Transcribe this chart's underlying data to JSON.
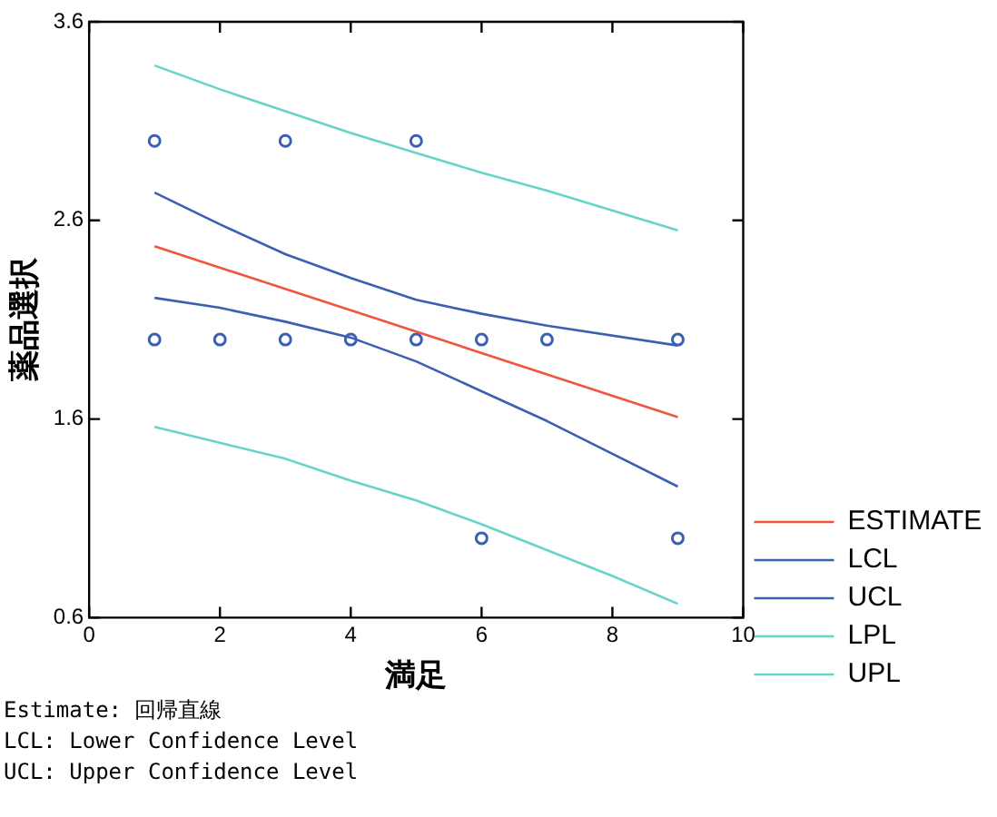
{
  "chart_data": {
    "type": "line",
    "xlabel": "満足",
    "ylabel": "薬品選択",
    "xlim": [
      0,
      10
    ],
    "xticks": [
      0,
      2,
      4,
      6,
      8,
      10
    ],
    "ylim": [
      0.6,
      3.6
    ],
    "yticks": [
      0.6,
      1.6,
      2.6,
      3.6
    ],
    "grid": false,
    "legend": "right",
    "line_style": "solid",
    "marker": "none",
    "series": [
      {
        "name": "ESTIMATE",
        "color": "#f0553f",
        "x": [
          1,
          9
        ],
        "values": [
          2.47,
          1.61
        ]
      },
      {
        "name": "LCL",
        "color": "#3d5fb3",
        "x": [
          1,
          2,
          3,
          4,
          5,
          6,
          7,
          9
        ],
        "values": [
          2.21,
          2.16,
          2.09,
          2.01,
          1.89,
          1.74,
          1.59,
          1.26
        ]
      },
      {
        "name": "UCL",
        "color": "#3d5fb3",
        "x": [
          1,
          2,
          3,
          4,
          5,
          6,
          7,
          9
        ],
        "values": [
          2.74,
          2.58,
          2.43,
          2.31,
          2.2,
          2.13,
          2.07,
          1.97
        ]
      },
      {
        "name": "LPL",
        "color": "#66d4c8",
        "x": [
          1,
          2,
          3,
          4,
          5,
          6,
          7,
          8,
          9
        ],
        "values": [
          1.56,
          1.48,
          1.4,
          1.29,
          1.19,
          1.07,
          0.94,
          0.81,
          0.67
        ]
      },
      {
        "name": "UPL",
        "color": "#66d4c8",
        "x": [
          1,
          2,
          3,
          4,
          5,
          6,
          7,
          9
        ],
        "values": [
          3.38,
          3.26,
          3.15,
          3.04,
          2.94,
          2.84,
          2.75,
          2.55
        ]
      },
      {
        "type": "scatter",
        "marker": "circle",
        "color": "#3d5fb3",
        "x": [
          1,
          3,
          5,
          1,
          2,
          3,
          4,
          5,
          6,
          7,
          9,
          6,
          9
        ],
        "values": [
          3,
          3,
          3,
          2,
          2,
          2,
          2,
          2,
          2,
          2,
          2,
          1,
          1
        ]
      }
    ],
    "annotations": [
      "Estimate: 回帰直線",
      "LCL: Lower Confidence Level",
      "UCL: Upper Confidence Level"
    ]
  }
}
